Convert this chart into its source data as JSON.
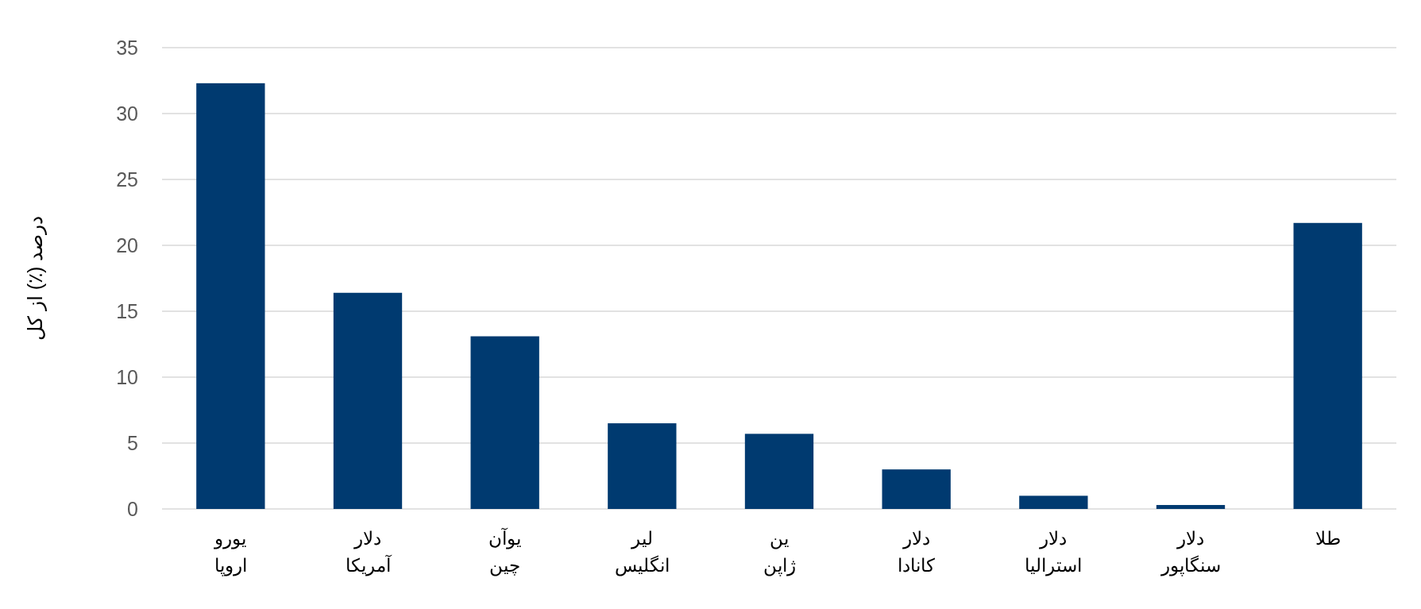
{
  "chart_data": {
    "type": "bar",
    "ylabel": "درصد (٪) از کل",
    "categories": [
      "یورو\nاروپا",
      "دلار\nآمریکا",
      "یوآن\nچین",
      "لیر\nانگلیس",
      "ین\nژاپن",
      "دلار\nکانادا",
      "دلار\nاسترالیا",
      "دلار\nسنگاپور",
      "طلا"
    ],
    "values": [
      32.3,
      16.4,
      13.1,
      6.5,
      5.7,
      3.0,
      1.0,
      0.3,
      21.7
    ],
    "color": "#003a70",
    "ylim": [
      0,
      35
    ],
    "yticks": [
      0,
      5,
      10,
      15,
      20,
      25,
      30,
      35
    ],
    "grid": "y"
  }
}
